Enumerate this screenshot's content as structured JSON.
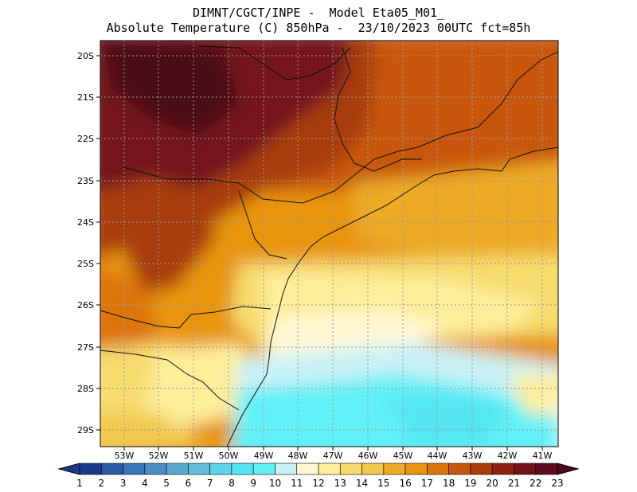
{
  "title_line1": "DIMNT/CGCT/INPE -  Model Eta05_M01_",
  "title_line2": "Absolute Temperature (C) 850hPa -  23/10/2023 00UTC fct=85h",
  "lat_labels": [
    "20S",
    "21S",
    "22S",
    "23S",
    "24S",
    "25S",
    "26S",
    "27S",
    "28S",
    "29S"
  ],
  "lon_labels": [
    "53W",
    "52W",
    "51W",
    "50W",
    "49W",
    "48W",
    "47W",
    "46W",
    "45W",
    "44W",
    "43W",
    "42W",
    "41W"
  ],
  "colorbar": {
    "labels": [
      "1",
      "2",
      "3",
      "4",
      "5",
      "6",
      "7",
      "8",
      "9",
      "10",
      "11",
      "12",
      "13",
      "14",
      "15",
      "16",
      "17",
      "18",
      "19",
      "20",
      "21",
      "22",
      "23"
    ],
    "colors": [
      "#1c3a8c",
      "#1c3a8c",
      "#2a5aa8",
      "#3a74b8",
      "#4a8ec4",
      "#5aa8d0",
      "#62c0dc",
      "#5fd4e8",
      "#55e6f2",
      "#60f0f6",
      "#c9f2f6",
      "#fff7d4",
      "#fdee9a",
      "#f6dc6e",
      "#f1c84e",
      "#ecaa26",
      "#e89410",
      "#dd740e",
      "#c8560e",
      "#a83c0c",
      "#8c2410",
      "#74141a",
      "#5e0c1e",
      "#4a0a18"
    ]
  }
}
